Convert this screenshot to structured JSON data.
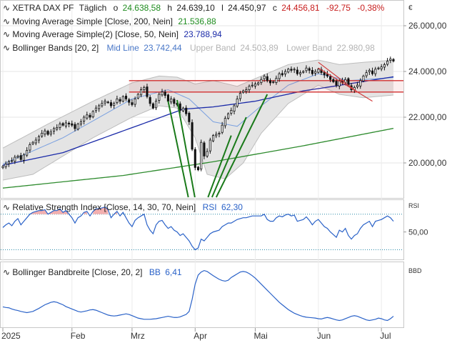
{
  "chart_data": {
    "type": "line",
    "instrument": "XETRA DAX PF",
    "interval": "Täglich",
    "currency_symbol": "€",
    "ohlc": {
      "open_label": "o",
      "open": "24.638,58",
      "high_label": "h",
      "high": "24.639,10",
      "low_label": "l",
      "low": "24.450,97",
      "close_label": "c",
      "close": "24.456,81",
      "change": "-92,75",
      "change_pct": "-0,38%"
    },
    "indicators": {
      "ma200_label": "Moving Average Simple [Close, 200, Nein]",
      "ma200_value": "21.536,88",
      "ma50_label": "Moving Average Simple(2) [Close, 50, Nein]",
      "ma50_value": "23.788,94",
      "bb_label": "Bollinger Bands [20, 2]",
      "bb_mid_label": "Mid Line",
      "bb_mid_value": "23.742,44",
      "bb_upper_label": "Upper Band",
      "bb_upper_value": "24.503,89",
      "bb_lower_label": "Lower Band",
      "bb_lower_value": "22.980,98"
    },
    "x_axis": {
      "months": [
        "2025",
        "Feb",
        "Mrz",
        "Apr",
        "Mai",
        "Jun",
        "Jul"
      ],
      "month_start_index": [
        0,
        23,
        43,
        64,
        84,
        105,
        126
      ],
      "n_bars": 131
    },
    "price_panel": {
      "ylim": [
        18500,
        27000
      ],
      "ticks": [
        26000,
        24000,
        22000,
        20000
      ],
      "tick_labels": [
        "26.000,00",
        "24.000,00",
        "22.000,00",
        "20.000,00"
      ],
      "closes": [
        19850,
        19950,
        20050,
        20100,
        20250,
        20300,
        20150,
        20350,
        20550,
        20800,
        20900,
        21000,
        21150,
        21300,
        21400,
        21250,
        21350,
        21500,
        21550,
        21700,
        21650,
        21750,
        21700,
        21650,
        21500,
        21700,
        21800,
        22000,
        22100,
        22000,
        22250,
        22400,
        22500,
        22600,
        22700,
        22650,
        22500,
        22600,
        22800,
        22700,
        22900,
        22800,
        22650,
        22550,
        22800,
        23000,
        23200,
        23300,
        22900,
        22600,
        22400,
        22700,
        23000,
        23100,
        22950,
        22700,
        22800,
        22600,
        22550,
        22300,
        22400,
        22150,
        21800,
        20600,
        19800,
        19700,
        20900,
        20300,
        20500,
        21000,
        21200,
        21250,
        21300,
        21650,
        21950,
        22150,
        22300,
        22500,
        22800,
        23050,
        23150,
        23200,
        23350,
        23400,
        23450,
        23500,
        23650,
        23800,
        23600,
        23500,
        23550,
        23700,
        23900,
        23850,
        24000,
        24100,
        24050,
        24100,
        23900,
        23950,
        24000,
        24150,
        24050,
        23900,
        24000,
        24100,
        23950,
        23850,
        23800,
        23650,
        23550,
        23400,
        23600,
        23500,
        23650,
        23400,
        23200,
        23300,
        23400,
        23600,
        23800,
        23950,
        24050,
        23900,
        24100,
        24150,
        24200,
        24300,
        24450,
        24550,
        24457
      ],
      "ma50_points": [
        [
          0,
          19900
        ],
        [
          20,
          20450
        ],
        [
          40,
          21400
        ],
        [
          60,
          22350
        ],
        [
          70,
          22450
        ],
        [
          84,
          22700
        ],
        [
          100,
          23150
        ],
        [
          110,
          23350
        ],
        [
          131,
          23789
        ]
      ],
      "ma200_points": [
        [
          0,
          18900
        ],
        [
          40,
          19450
        ],
        [
          70,
          20050
        ],
        [
          100,
          20750
        ],
        [
          131,
          21537
        ]
      ],
      "bb_upper_points": [
        [
          0,
          20650
        ],
        [
          15,
          21700
        ],
        [
          30,
          22700
        ],
        [
          43,
          23500
        ],
        [
          52,
          23800
        ],
        [
          58,
          23750
        ],
        [
          64,
          23450
        ],
        [
          70,
          23600
        ],
        [
          78,
          23350
        ],
        [
          86,
          23800
        ],
        [
          95,
          24300
        ],
        [
          105,
          24500
        ],
        [
          112,
          24300
        ],
        [
          120,
          24400
        ],
        [
          131,
          24504
        ]
      ],
      "bb_lower_points": [
        [
          0,
          19250
        ],
        [
          10,
          19500
        ],
        [
          20,
          20300
        ],
        [
          30,
          21100
        ],
        [
          43,
          22000
        ],
        [
          52,
          22500
        ],
        [
          58,
          22400
        ],
        [
          64,
          21100
        ],
        [
          68,
          19500
        ],
        [
          74,
          19300
        ],
        [
          80,
          20000
        ],
        [
          86,
          21300
        ],
        [
          95,
          22600
        ],
        [
          105,
          23400
        ],
        [
          112,
          23000
        ],
        [
          120,
          22850
        ],
        [
          131,
          22981
        ]
      ],
      "bb_mid_points": [
        [
          0,
          19950
        ],
        [
          20,
          21100
        ],
        [
          43,
          22800
        ],
        [
          55,
          23200
        ],
        [
          62,
          22800
        ],
        [
          70,
          21800
        ],
        [
          78,
          21600
        ],
        [
          86,
          22500
        ],
        [
          95,
          23400
        ],
        [
          105,
          23900
        ],
        [
          115,
          23600
        ],
        [
          131,
          23742
        ]
      ],
      "resistance_band": [
        23100,
        23600
      ],
      "trend_lines": [
        {
          "color": "green",
          "from": [
            55,
            22700
          ],
          "to": [
            63,
            17700
          ]
        },
        {
          "color": "green",
          "from": [
            58,
            22750
          ],
          "to": [
            65,
            17700
          ]
        },
        {
          "color": "green",
          "from": [
            76,
            21200
          ],
          "to": [
            66,
            17700
          ]
        },
        {
          "color": "green",
          "from": [
            81,
            22000
          ],
          "to": [
            67,
            17700
          ]
        },
        {
          "color": "green",
          "from": [
            88,
            23000
          ],
          "to": [
            68,
            17700
          ]
        },
        {
          "color": "red",
          "from": [
            105,
            24150
          ],
          "to": [
            123,
            22700
          ]
        },
        {
          "color": "red",
          "from": [
            105,
            24400
          ],
          "to": [
            118,
            23100
          ]
        }
      ]
    },
    "rsi_panel": {
      "label": "Relative Strength Index [Close, 14, 30, 70, Nein]",
      "value_label": "RSI",
      "value": "62,30",
      "axis_label": "RSI",
      "ylim": [
        20,
        85
      ],
      "tick": 50,
      "tick_label": "50,00",
      "levels": [
        70,
        30
      ],
      "values": [
        55,
        58,
        60,
        57,
        62,
        65,
        58,
        62,
        66,
        70,
        72,
        73,
        74,
        74,
        75,
        70,
        72,
        74,
        74,
        76,
        72,
        74,
        70,
        66,
        60,
        66,
        68,
        72,
        73,
        68,
        73,
        76,
        76,
        77,
        78,
        75,
        66,
        70,
        73,
        68,
        72,
        66,
        60,
        56,
        63,
        66,
        68,
        70,
        58,
        52,
        48,
        58,
        62,
        63,
        58,
        54,
        56,
        52,
        50,
        46,
        48,
        44,
        40,
        34,
        30,
        32,
        42,
        40,
        44,
        48,
        50,
        51,
        52,
        56,
        58,
        60,
        60,
        62,
        64,
        65,
        66,
        66,
        67,
        68,
        68,
        68,
        68,
        70,
        64,
        62,
        62,
        66,
        68,
        67,
        69,
        70,
        68,
        69,
        62,
        63,
        64,
        67,
        63,
        58,
        62,
        64,
        60,
        56,
        54,
        50,
        47,
        44,
        52,
        50,
        54,
        46,
        42,
        46,
        48,
        54,
        58,
        60,
        62,
        56,
        62,
        63,
        64,
        66,
        68,
        66,
        62
      ]
    },
    "bbw_panel": {
      "label": "Bollinger Bandbreite [Close, 20, 2]",
      "value_label": "BB",
      "value": "6,41",
      "axis_label": "BBD",
      "ylim": [
        3,
        24
      ],
      "values": [
        9.5,
        9.3,
        9.2,
        8.8,
        8.5,
        8.3,
        8.0,
        7.8,
        7.6,
        7.8,
        8.0,
        8.5,
        9.0,
        9.6,
        10.2,
        10.6,
        11.0,
        11.2,
        11.0,
        10.6,
        10.2,
        9.6,
        9.2,
        8.8,
        8.4,
        8.0,
        7.8,
        8.0,
        8.2,
        8.5,
        8.6,
        8.4,
        8.0,
        7.6,
        7.2,
        6.8,
        6.6,
        6.5,
        6.6,
        6.8,
        7.0,
        7.2,
        7.0,
        6.6,
        6.2,
        5.8,
        5.6,
        5.4,
        5.4,
        5.4,
        5.5,
        5.6,
        5.8,
        6.0,
        6.2,
        6.4,
        6.2,
        6.0,
        6.0,
        6.2,
        6.6,
        7.0,
        8.0,
        12.0,
        17.0,
        20.0,
        21.0,
        21.5,
        21.2,
        20.5,
        19.8,
        19.2,
        18.6,
        18.2,
        18.0,
        18.3,
        19.2,
        19.8,
        20.4,
        21.0,
        21.2,
        21.0,
        20.5,
        19.8,
        19.0,
        18.0,
        17.0,
        16.0,
        15.0,
        14.0,
        13.0,
        12.0,
        11.0,
        10.2,
        9.4,
        8.6,
        8.0,
        7.4,
        7.0,
        6.6,
        6.3,
        6.1,
        6.0,
        5.9,
        5.8,
        5.6,
        5.5,
        5.8,
        6.0,
        5.8,
        5.5,
        5.2,
        5.0,
        5.2,
        5.6,
        6.0,
        6.4,
        6.6,
        6.4,
        6.0,
        5.6,
        5.2,
        5.0,
        5.2,
        5.4,
        5.8,
        5.6,
        5.2,
        5.0,
        5.6,
        6.41
      ]
    }
  }
}
